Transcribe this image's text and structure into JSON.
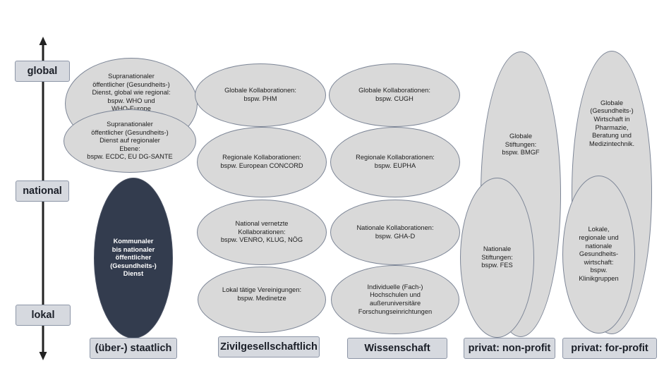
{
  "levels": {
    "global": "global",
    "national": "national",
    "lokal": "lokal"
  },
  "categories": {
    "staatlich": "(über-) staatlich",
    "zivil": "Zivilgesellschaftlich",
    "wissenschaft": "Wissenschaft",
    "nonprofit": "privat: non-profit",
    "forprofit": "privat: for-profit"
  },
  "ellipses": {
    "supra_global": "Supranationaler\nöffentlicher (Gesundheits-)\nDienst, global wie regional:\nbspw. WHO und\nWHO-Europe",
    "supra_regional": "Supranationaler\nöffentlicher (Gesundheits-)\nDienst auf regionaler\nEbene:\nbspw. ECDC, EU DG-SANTE",
    "kommunal": "Kommunaler\nbis nationaler\nöffentlicher\n(Gesundheits-)\nDienst",
    "zivil_global": "Globale Kollaborationen:\nbspw. PHM",
    "zivil_regional": "Regionale Kollaborationen:\nbspw. European CONCORD",
    "zivil_national": "National vernetzte\nKollaborationen:\nbspw. VENRO, KLUG, NÖG",
    "zivil_lokal": "Lokal tätige Vereinigungen:\nbspw. Medinetze",
    "wiss_global": "Globale Kollaborationen:\nbspw. CUGH",
    "wiss_regional": "Regionale Kollaborationen:\nbspw. EUPHA",
    "wiss_national": "Nationale Kollaborationen:\nbspw. GHA-D",
    "wiss_lokal": "Individuelle (Fach-)\nHochschulen und\naußeruniversitäre\nForschungseinrichtungen",
    "np_global": "Globale\nStiftungen:\nbspw. BMGF",
    "np_national": "Nationale\nStiftungen:\nbspw. FES",
    "fp_global": "Globale\n(Gesundheits-)\nWirtschaft in\nPharmazie,\nBeratung und\nMedizintechnik.",
    "fp_lokal": "Lokale,\nregionale und\nnationale\nGesundheits-\nwirtschaft:\nbspw.\nKlinikgruppen"
  },
  "colors": {
    "box_fill": "#d6d9df",
    "ellipse_fill": "#d9d9d9",
    "dark_fill": "#333c4e",
    "axis": "#222222"
  }
}
